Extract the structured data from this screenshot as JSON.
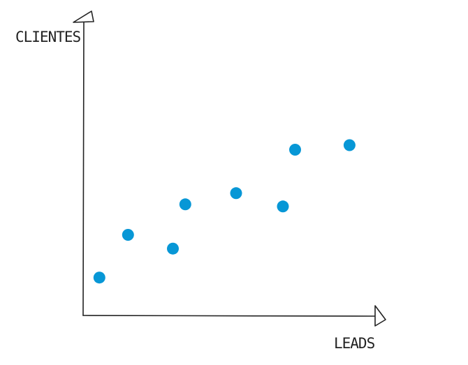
{
  "chart_data": {
    "type": "scatter",
    "title": "",
    "xlabel": "LEADS",
    "ylabel": "CLIENTES",
    "xlim": [
      0,
      100
    ],
    "ylim": [
      0,
      100
    ],
    "grid": false,
    "legend": "none",
    "point_color": "#0797d6",
    "axis_color": "#222222",
    "points": [
      {
        "x": 5.5,
        "y": 14.3
      },
      {
        "x": 15.6,
        "y": 30.4
      },
      {
        "x": 31.4,
        "y": 25.2
      },
      {
        "x": 35.8,
        "y": 41.9
      },
      {
        "x": 53.7,
        "y": 46.1
      },
      {
        "x": 70.2,
        "y": 41.1
      },
      {
        "x": 74.5,
        "y": 62.5
      },
      {
        "x": 93.7,
        "y": 64.2
      }
    ]
  }
}
